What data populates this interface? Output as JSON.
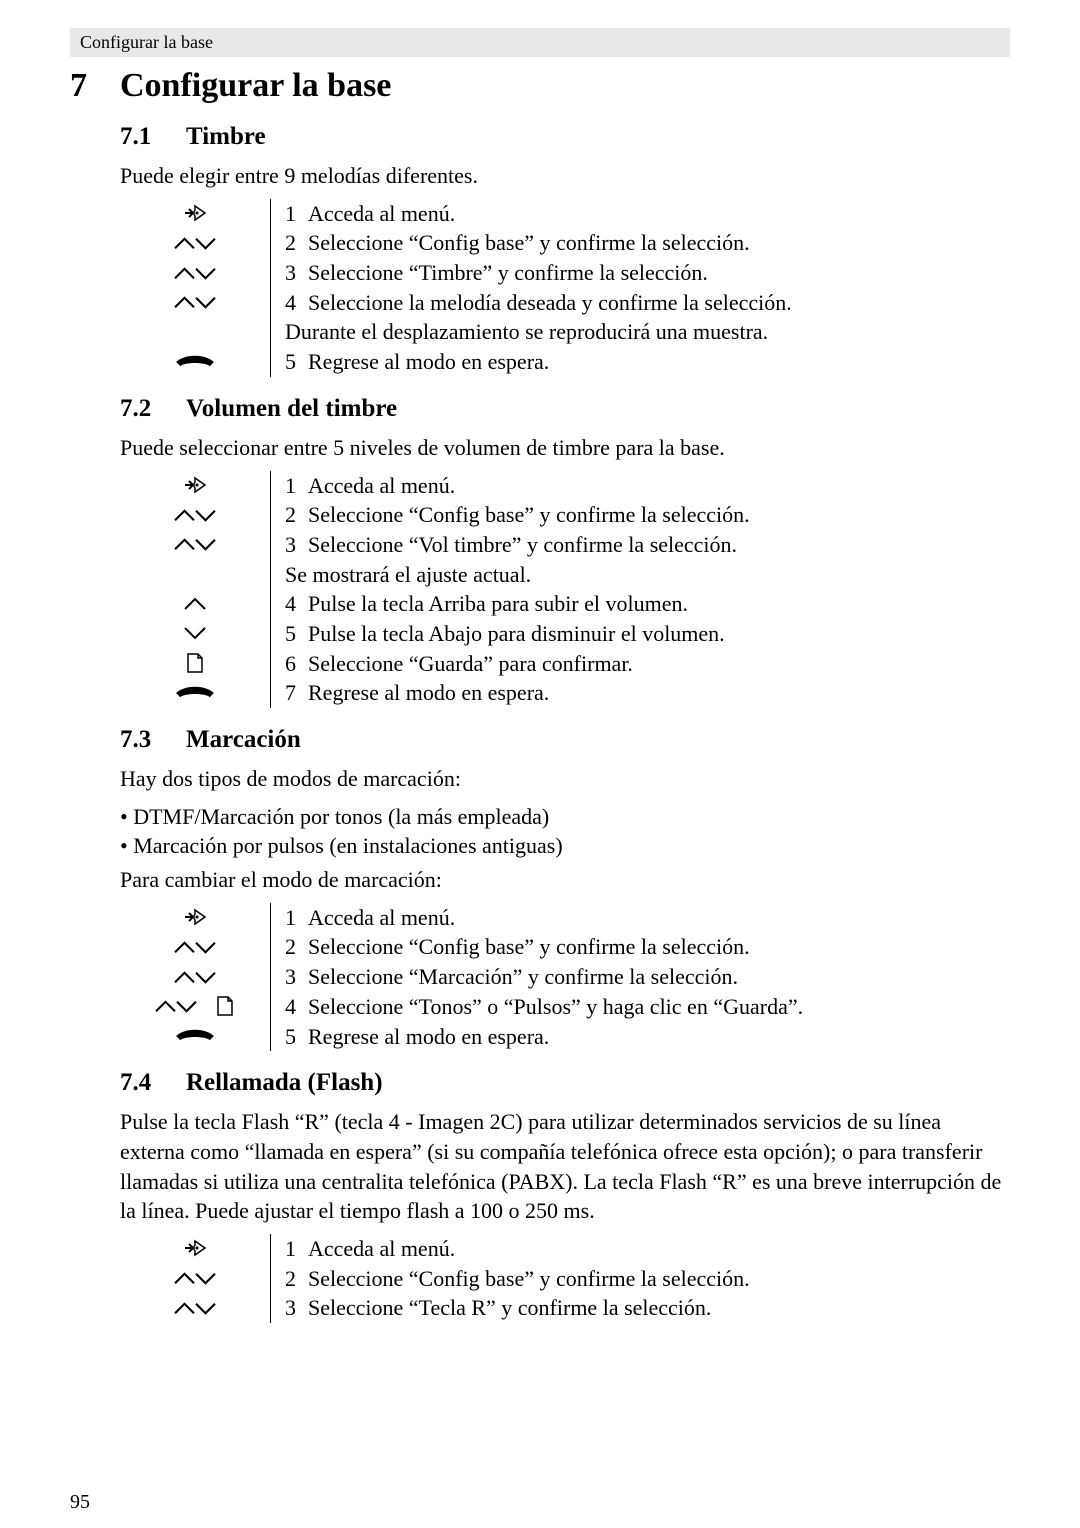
{
  "header": {
    "running_title": "Configurar la base"
  },
  "page_number": "95",
  "section": {
    "number": "7",
    "title": "Configurar la base"
  },
  "s71": {
    "number": "7.1",
    "title": "Timbre",
    "intro": "Puede elegir entre 9 melodías diferentes.",
    "steps": [
      {
        "icon": "menu",
        "n": "1",
        "t": "Acceda al menú."
      },
      {
        "icon": "updown",
        "n": "2",
        "t": "Seleccione “Config base” y confirme la selección."
      },
      {
        "icon": "updown",
        "n": "3",
        "t": "Seleccione “Timbre” y confirme la selección."
      },
      {
        "icon": "updown",
        "n": "4",
        "t": "Seleccione la melodía deseada y confirme la selección."
      },
      {
        "icon": "",
        "note": "Durante el desplazamiento se reproducirá una muestra."
      },
      {
        "icon": "hangup",
        "n": "5",
        "t": "Regrese al modo en espera."
      }
    ]
  },
  "s72": {
    "number": "7.2",
    "title": "Volumen del timbre",
    "intro": "Puede seleccionar entre 5 niveles de volumen de timbre para la base.",
    "steps": [
      {
        "icon": "menu",
        "n": "1",
        "t": "Acceda al menú."
      },
      {
        "icon": "updown",
        "n": "2",
        "t": "Seleccione “Config base” y confirme la selección."
      },
      {
        "icon": "updown",
        "n": "3",
        "t": "Seleccione “Vol timbre” y confirme la selección."
      },
      {
        "icon": "",
        "note": "Se mostrará el ajuste actual."
      },
      {
        "icon": "up",
        "n": "4",
        "t": "Pulse la tecla Arriba para subir el volumen."
      },
      {
        "icon": "down",
        "n": "5",
        "t": "Pulse la tecla Abajo para disminuir el volumen."
      },
      {
        "icon": "page",
        "n": "6",
        "t": "Seleccione “Guarda” para confirmar."
      },
      {
        "icon": "hangup",
        "n": "7",
        "t": "Regrese al modo en espera."
      }
    ]
  },
  "s73": {
    "number": "7.3",
    "title": "Marcación",
    "intro1": "Hay dos tipos de modos de marcación:",
    "bullets": [
      "DTMF/Marcación por tonos (la más empleada)",
      "Marcación por pulsos (en instalaciones antiguas)"
    ],
    "intro2": "Para cambiar el modo de marcación:",
    "steps": [
      {
        "icon": "menu",
        "n": "1",
        "t": "Acceda al menú."
      },
      {
        "icon": "updown",
        "n": "2",
        "t": "Seleccione “Config base” y confirme la selección."
      },
      {
        "icon": "updown",
        "n": "3",
        "t": "Seleccione “Marcación” y confirme la selección."
      },
      {
        "icon": "updown+page",
        "n": "4",
        "t": "Seleccione “Tonos” o “Pulsos” y haga clic en “Guarda”."
      },
      {
        "icon": "hangup",
        "n": "5",
        "t": "Regrese al modo en espera."
      }
    ]
  },
  "s74": {
    "number": "7.4",
    "title": "Rellamada (Flash)",
    "intro": "Pulse la tecla Flash “R” (tecla 4 - Imagen 2C) para utilizar determinados servicios de su línea externa como “llamada en espera” (si su compañía telefónica ofrece esta opción); o para transferir llamadas si utiliza una centralita telefónica (PABX). La tecla Flash “R” es una breve interrupción de la línea. Puede ajustar el tiempo flash a 100 o 250 ms.",
    "steps": [
      {
        "icon": "menu",
        "n": "1",
        "t": "Acceda al menú."
      },
      {
        "icon": "updown",
        "n": "2",
        "t": "Seleccione “Config base” y confirme la selección."
      },
      {
        "icon": "updown",
        "n": "3",
        "t": "Seleccione “Tecla R” y confirme la selección."
      }
    ]
  }
}
